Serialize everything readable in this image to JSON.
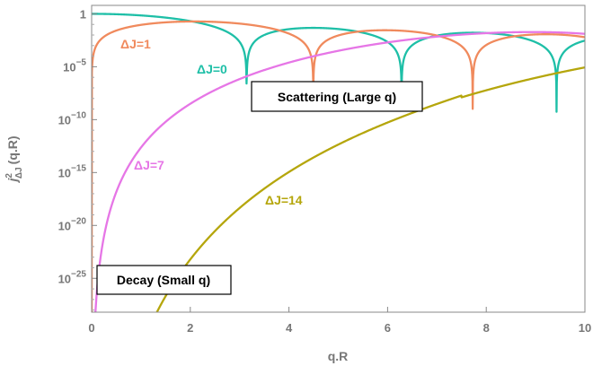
{
  "chart_data": {
    "type": "line",
    "title": "",
    "xlabel": "q.R",
    "ylabel_main": "j",
    "ylabel_sup": "2",
    "ylabel_sub": "ΔJ",
    "ylabel_tail": "(q.R)",
    "xlim": [
      0,
      10
    ],
    "ylim_log10": [
      -28.2,
      0.8
    ],
    "y_scale": "log",
    "x_ticks": [
      "0",
      "2",
      "4",
      "6",
      "8",
      "10"
    ],
    "y_ticks": [
      {
        "mant": "1",
        "exp": ""
      },
      {
        "mant": "10",
        "exp": "−5"
      },
      {
        "mant": "10",
        "exp": "−10"
      },
      {
        "mant": "10",
        "exp": "−15"
      },
      {
        "mant": "10",
        "exp": "−20"
      },
      {
        "mant": "10",
        "exp": "−25"
      }
    ],
    "series": [
      {
        "name": "ΔJ=0",
        "label": "ΔJ=0",
        "order": 0,
        "color": "#1ebfa7"
      },
      {
        "name": "ΔJ=1",
        "label": "ΔJ=1",
        "order": 1,
        "color": "#f08a5d"
      },
      {
        "name": "ΔJ=7",
        "label": "ΔJ=7",
        "order": 7,
        "color": "#e676e6"
      },
      {
        "name": "ΔJ=14",
        "label": "ΔJ=14",
        "order": 14,
        "color": "#b5a60c"
      }
    ],
    "annotations": [
      {
        "text": "Scattering (Large q)"
      },
      {
        "text": "Decay (Small q)"
      }
    ],
    "grid": false,
    "frame": true
  }
}
